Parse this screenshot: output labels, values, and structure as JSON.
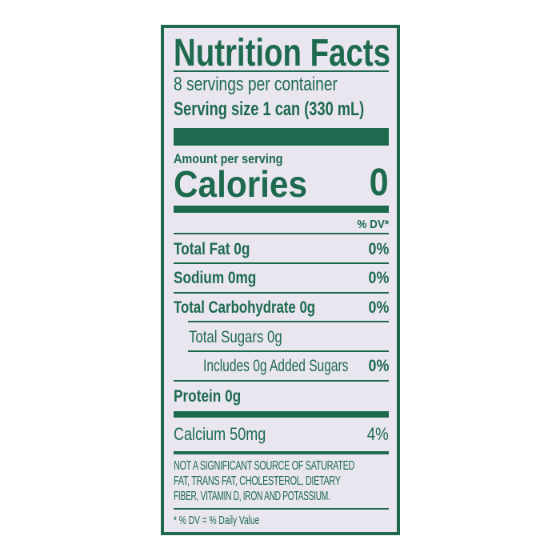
{
  "title": "Nutrition Facts",
  "servings_per_container": "8 servings per container",
  "serving_size": "Serving size 1 can (330 mL)",
  "amount_per_serving": "Amount per serving",
  "calories_label": "Calories",
  "calories_value": "0",
  "dv_header": "% DV*",
  "nutrients": [
    {
      "label": "Total Fat 0g",
      "dv": "0%"
    },
    {
      "label": "Sodium 0mg",
      "dv": "0%"
    },
    {
      "label": "Total Carbohydrate 0g",
      "dv": "0%"
    },
    {
      "label": "Total Sugars 0g",
      "dv": ""
    },
    {
      "label": "Includes 0g Added Sugars",
      "dv": "0%"
    },
    {
      "label": "Protein 0g",
      "dv": ""
    }
  ],
  "vitamins": [
    {
      "label": "Calcium 50mg",
      "dv": "4%"
    }
  ],
  "footnote_lines": [
    "NOT A SIGNIFICANT SOURCE OF SATURATED",
    "FAT, TRANS FAT, CHOLESTEROL, DIETARY",
    "FIBER, VITAMIN D, IRON AND POTASSIUM."
  ],
  "dv_note": "* % DV = % Daily Value",
  "colors": {
    "ink": "#1d6a4e",
    "background": "#e9e6ef"
  }
}
